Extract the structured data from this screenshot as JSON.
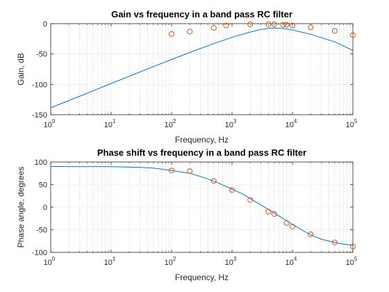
{
  "chart_data": [
    {
      "type": "line",
      "title": "Gain vs frequency in a band pass RC filter",
      "xlabel": "Frequency, Hz",
      "ylabel": "Gain, dB",
      "xscale": "log",
      "xlim": [
        1,
        100000
      ],
      "ylim": [
        -150,
        0
      ],
      "xticks": [
        1,
        10,
        100,
        1000,
        10000,
        100000
      ],
      "xtick_labels": [
        [
          "10",
          "0"
        ],
        [
          "10",
          "1"
        ],
        [
          "10",
          "2"
        ],
        [
          "10",
          "3"
        ],
        [
          "10",
          "4"
        ],
        [
          "10",
          "5"
        ]
      ],
      "yticks": [
        -150,
        -100,
        -50,
        0
      ],
      "ytick_labels": [
        "-150",
        "-100",
        "-50",
        "0"
      ],
      "grid": "dotted, major and minor",
      "series": [
        {
          "kind": "line",
          "color": "#0072BD",
          "x": [
            1,
            2,
            5,
            10,
            20,
            50,
            100,
            200,
            500,
            1000,
            2000,
            3000,
            4000,
            5000,
            7000,
            10000,
            20000,
            50000,
            100000
          ],
          "y": [
            -138.6,
            -126.6,
            -110.7,
            -98.6,
            -86.6,
            -70.8,
            -59.0,
            -47.5,
            -32.9,
            -22.6,
            -13.8,
            -9.6,
            -7.8,
            -7.3,
            -8.0,
            -10.4,
            -17.5,
            -30.0,
            -44.2
          ]
        },
        {
          "kind": "scatter",
          "marker": "circle",
          "color": "#D95319",
          "x": [
            100,
            200,
            500,
            800,
            2000,
            4000,
            5000,
            7000,
            8000,
            10000,
            20000,
            50000,
            100000
          ],
          "y": [
            -17,
            -13,
            -7,
            -3,
            -1,
            -1,
            -1,
            -2,
            -2,
            -3,
            -6,
            -12,
            -19
          ]
        }
      ]
    },
    {
      "type": "line",
      "title": "Phase shift vs frequency in a band pass RC filter",
      "xlabel": "Frequency, Hz",
      "ylabel": "Phase angle, degrees",
      "xscale": "log",
      "xlim": [
        1,
        100000
      ],
      "ylim": [
        -100,
        100
      ],
      "xticks": [
        1,
        10,
        100,
        1000,
        10000,
        100000
      ],
      "xtick_labels": [
        [
          "10",
          "0"
        ],
        [
          "10",
          "1"
        ],
        [
          "10",
          "2"
        ],
        [
          "10",
          "3"
        ],
        [
          "10",
          "4"
        ],
        [
          "10",
          "5"
        ]
      ],
      "yticks": [
        -100,
        -50,
        0,
        50,
        100
      ],
      "ytick_labels": [
        "-100",
        "-50",
        "0",
        "50",
        "100"
      ],
      "grid": "dotted, major and minor",
      "series": [
        {
          "kind": "line",
          "color": "#0072BD",
          "x": [
            1,
            10,
            30,
            50,
            100,
            200,
            300,
            500,
            700,
            1000,
            1500,
            2000,
            3000,
            4000,
            5000,
            7000,
            8000,
            10000,
            15000,
            20000,
            30000,
            50000,
            70000,
            100000
          ],
          "y": [
            90,
            89.5,
            88,
            86.5,
            81,
            75,
            68,
            58,
            49,
            40,
            29,
            19,
            5,
            -5,
            -13,
            -25,
            -30,
            -38,
            -52,
            -61,
            -71,
            -78,
            -82,
            -84
          ]
        },
        {
          "kind": "scatter",
          "marker": "circle",
          "color": "#D95319",
          "x": [
            100,
            200,
            500,
            1000,
            2000,
            4000,
            5000,
            8000,
            10000,
            20000,
            50000,
            100000
          ],
          "y": [
            81,
            80,
            58,
            38,
            16,
            -10,
            -15,
            -35,
            -43,
            -60,
            -78,
            -87
          ]
        }
      ]
    }
  ]
}
